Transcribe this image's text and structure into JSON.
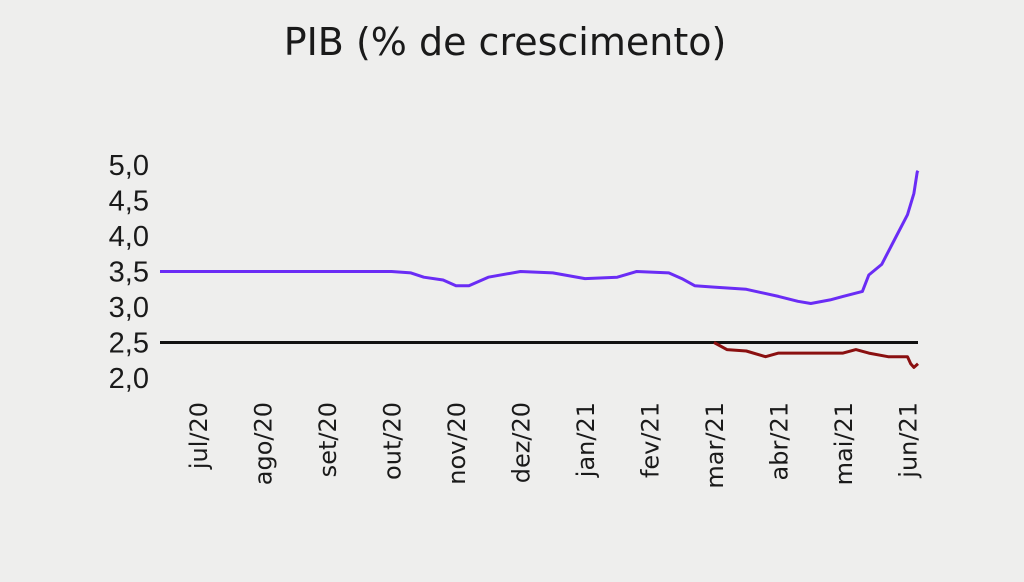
{
  "chart_data": {
    "type": "line",
    "title": "PIB (% de crescimento)",
    "xlabel": "",
    "ylabel": "",
    "ylim": [
      2.0,
      5.0
    ],
    "yticks": [
      "5,0",
      "4,5",
      "4,0",
      "3,5",
      "3,0",
      "2,5",
      "2,0"
    ],
    "ytick_values": [
      5.0,
      4.5,
      4.0,
      3.5,
      3.0,
      2.5,
      2.0
    ],
    "xticks": [
      "jul/20",
      "ago/20",
      "set/20",
      "out/20",
      "nov/20",
      "dez/20",
      "jan/21",
      "fev/21",
      "mar/21",
      "abr/21",
      "mai/21",
      "jun/21"
    ],
    "xlim": [
      0,
      11.2
    ],
    "grid": false,
    "reference_line": {
      "y": 2.5,
      "color": "#111111"
    },
    "series": [
      {
        "color": "#6a2cf5",
        "points": [
          [
            0,
            3.5
          ],
          [
            1,
            3.5
          ],
          [
            2,
            3.5
          ],
          [
            3,
            3.5
          ],
          [
            3.3,
            3.48
          ],
          [
            3.5,
            3.42
          ],
          [
            3.8,
            3.38
          ],
          [
            4.0,
            3.3
          ],
          [
            4.2,
            3.3
          ],
          [
            4.5,
            3.42
          ],
          [
            5.0,
            3.5
          ],
          [
            5.5,
            3.48
          ],
          [
            6.0,
            3.4
          ],
          [
            6.5,
            3.42
          ],
          [
            6.8,
            3.5
          ],
          [
            7.3,
            3.48
          ],
          [
            7.5,
            3.4
          ],
          [
            7.7,
            3.3
          ],
          [
            8.0,
            3.28
          ],
          [
            8.5,
            3.25
          ],
          [
            9.0,
            3.15
          ],
          [
            9.3,
            3.08
          ],
          [
            9.5,
            3.05
          ],
          [
            9.8,
            3.1
          ],
          [
            10.0,
            3.15
          ],
          [
            10.3,
            3.22
          ],
          [
            10.4,
            3.45
          ],
          [
            10.6,
            3.6
          ],
          [
            10.8,
            3.95
          ],
          [
            11.0,
            4.3
          ],
          [
            11.1,
            4.6
          ],
          [
            11.15,
            4.9
          ],
          [
            11.2,
            4.92
          ]
        ]
      },
      {
        "color": "#8a1010",
        "points": [
          [
            8.0,
            2.5
          ],
          [
            8.2,
            2.4
          ],
          [
            8.5,
            2.38
          ],
          [
            8.8,
            2.3
          ],
          [
            9.0,
            2.35
          ],
          [
            9.5,
            2.35
          ],
          [
            10.0,
            2.35
          ],
          [
            10.2,
            2.4
          ],
          [
            10.4,
            2.35
          ],
          [
            10.7,
            2.3
          ],
          [
            11.0,
            2.3
          ],
          [
            11.05,
            2.2
          ],
          [
            11.1,
            2.15
          ],
          [
            11.2,
            2.2
          ]
        ]
      }
    ]
  }
}
